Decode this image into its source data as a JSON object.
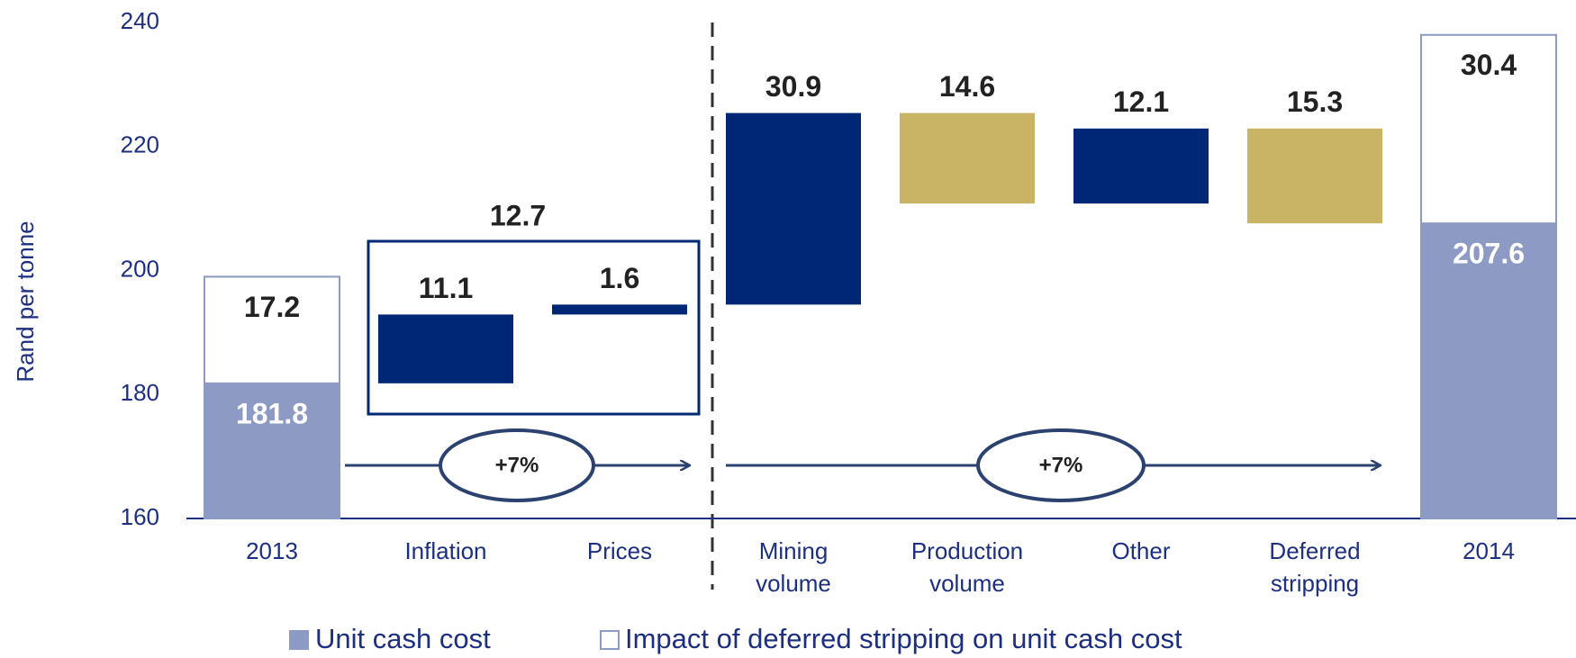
{
  "chart_data": {
    "type": "waterfall",
    "y_label": "Rand per tonne",
    "categories": [
      [
        "2013"
      ],
      [
        "Inflation"
      ],
      [
        "Prices"
      ],
      [
        "Mining",
        "volume"
      ],
      [
        "Production",
        "volume"
      ],
      [
        "Other"
      ],
      [
        "Deferred",
        "stripping"
      ],
      [
        "2014"
      ]
    ],
    "ylim": [
      160,
      240
    ],
    "yticks": [
      160,
      180,
      200,
      220,
      240
    ],
    "grid": false,
    "series": [
      {
        "name": "Unit cash cost",
        "color": "#8c9ac4",
        "values": [
          181.8,
          null,
          null,
          null,
          null,
          null,
          null,
          207.6
        ]
      },
      {
        "name": "Impact of deferred stripping on unit cash cost",
        "color": "#ffffff",
        "values": [
          17.2,
          null,
          null,
          null,
          null,
          null,
          null,
          30.4
        ]
      }
    ],
    "changes": {
      "values": [
        null,
        11.1,
        1.6,
        30.9,
        -14.6,
        12.1,
        -15.3,
        null
      ],
      "value_labels": [
        null,
        "11.1",
        "1.6",
        "30.9",
        "14.6",
        "12.1",
        "15.3",
        null
      ],
      "increase_color": "#002776",
      "decrease_color": "#c8b464"
    },
    "group_total": 12.7,
    "growth_labels": [
      "+7%",
      "+7%"
    ],
    "legend": "bottom"
  }
}
